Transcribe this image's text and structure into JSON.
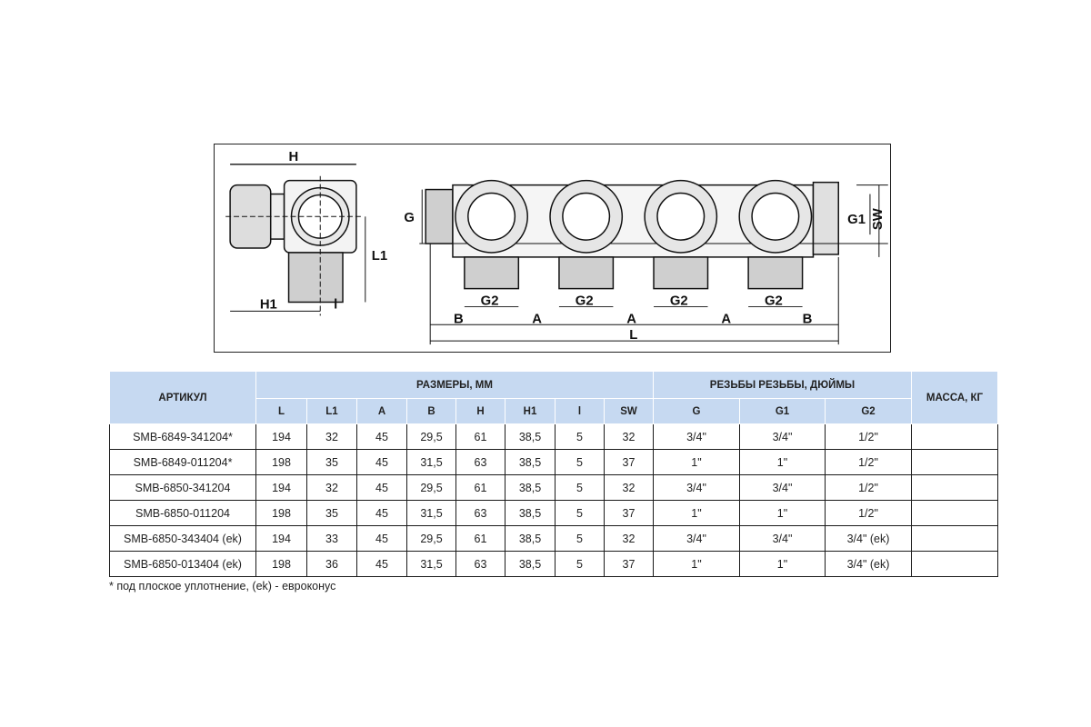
{
  "drawing": {
    "labels": {
      "H": "H",
      "L1": "L1",
      "H1": "H1",
      "l": "l",
      "G": "G",
      "G2": "G2",
      "A": "A",
      "B": "B",
      "L": "L",
      "G1": "G1",
      "SW": "SW"
    }
  },
  "table": {
    "col_article": "АРТИКУЛ",
    "group_dimensions": "РАЗМЕРЫ, ММ",
    "group_threads": "РЕЗЬБЫ РЕЗЬБЫ, ДЮЙМЫ",
    "col_mass": "МАССА, КГ",
    "dim_cols": [
      "L",
      "L1",
      "A",
      "B",
      "H",
      "H1",
      "l",
      "SW"
    ],
    "thread_cols": [
      "G",
      "G1",
      "G2"
    ],
    "rows": [
      [
        "SMB-6849-341204*",
        "194",
        "32",
        "45",
        "29,5",
        "61",
        "38,5",
        "5",
        "32",
        "3/4\"",
        "3/4\"",
        "1/2\"",
        ""
      ],
      [
        "SMB-6849-011204*",
        "198",
        "35",
        "45",
        "31,5",
        "63",
        "38,5",
        "5",
        "37",
        "1\"",
        "1\"",
        "1/2\"",
        ""
      ],
      [
        "SMB-6850-341204",
        "194",
        "32",
        "45",
        "29,5",
        "61",
        "38,5",
        "5",
        "32",
        "3/4\"",
        "3/4\"",
        "1/2\"",
        ""
      ],
      [
        "SMB-6850-011204",
        "198",
        "35",
        "45",
        "31,5",
        "63",
        "38,5",
        "5",
        "37",
        "1\"",
        "1\"",
        "1/2\"",
        ""
      ],
      [
        "SMB-6850-343404 (ek)",
        "194",
        "33",
        "45",
        "29,5",
        "61",
        "38,5",
        "5",
        "32",
        "3/4\"",
        "3/4\"",
        "3/4\" (ek)",
        ""
      ],
      [
        "SMB-6850-013404 (ek)",
        "198",
        "36",
        "45",
        "31,5",
        "63",
        "38,5",
        "5",
        "37",
        "1\"",
        "1\"",
        "3/4\" (ek)",
        ""
      ]
    ]
  },
  "note": "* под плоское уплотнение, (ek) - евроконус"
}
